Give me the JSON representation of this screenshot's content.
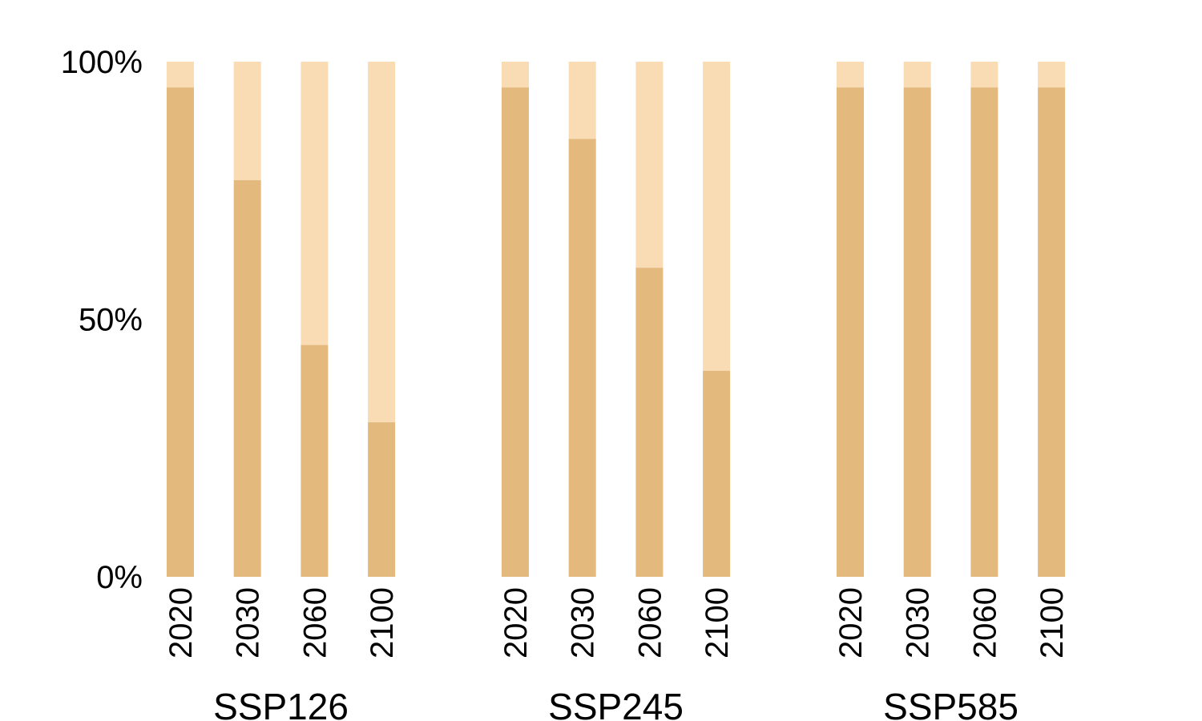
{
  "chart_data": {
    "type": "bar",
    "stacked": true,
    "ylim": [
      0,
      100
    ],
    "y_ticks": [
      "0%",
      "50%",
      "100%"
    ],
    "y_tick_values": [
      0,
      50,
      100
    ],
    "grid": false,
    "legend": "none",
    "colors": {
      "lower": "#e3b97e",
      "upper": "#f9dcb3"
    },
    "groups": [
      {
        "label": "SSP126",
        "categories": [
          "2020",
          "2030",
          "2060",
          "2100"
        ],
        "values": [
          95,
          77,
          45,
          30
        ]
      },
      {
        "label": "SSP245",
        "categories": [
          "2020",
          "2030",
          "2060",
          "2100"
        ],
        "values": [
          95,
          85,
          60,
          40
        ]
      },
      {
        "label": "SSP585",
        "categories": [
          "2020",
          "2030",
          "2060",
          "2100"
        ],
        "values": [
          95,
          95,
          95,
          95
        ]
      }
    ]
  }
}
